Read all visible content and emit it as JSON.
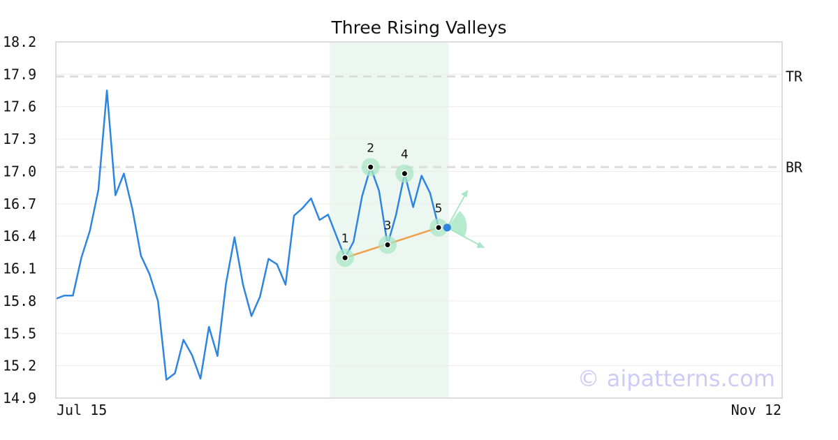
{
  "chart_data": {
    "type": "line",
    "title": "Three Rising Valleys",
    "ylim": [
      14.9,
      18.2
    ],
    "y_ticks": [
      "18.2",
      "17.9",
      "17.6",
      "17.3",
      "17.0",
      "16.7",
      "16.4",
      "16.1",
      "15.8",
      "15.5",
      "15.2",
      "14.9"
    ],
    "x_tick_labels": [
      "Jul 15",
      "Nov 12"
    ],
    "grid": true,
    "reference_lines": [
      {
        "label": "TR",
        "value": 17.88
      },
      {
        "label": "BR",
        "value": 17.04
      }
    ],
    "series": [
      {
        "color": "#2d85e0",
        "values": [
          15.82,
          15.85,
          15.85,
          16.2,
          16.45,
          16.83,
          17.75,
          16.78,
          16.98,
          16.65,
          16.22,
          16.05,
          15.8,
          15.07,
          15.13,
          15.44,
          15.3,
          15.08,
          15.56,
          15.29,
          15.96,
          16.39,
          15.95,
          15.66,
          15.84,
          16.19,
          16.14,
          15.95,
          16.59,
          16.66,
          16.75,
          16.55,
          16.6,
          16.4,
          16.2,
          16.35,
          16.77,
          17.04,
          16.82,
          16.32,
          16.6,
          16.98,
          16.67,
          16.96,
          16.8,
          16.48
        ]
      }
    ],
    "pattern": {
      "name": "Three Rising Valleys",
      "highlight_range": [
        32.2,
        46.2
      ],
      "points": [
        {
          "label": "1",
          "index": 34,
          "value": 16.2
        },
        {
          "label": "2",
          "index": 37,
          "value": 17.04
        },
        {
          "label": "3",
          "index": 39,
          "value": 16.32
        },
        {
          "label": "4",
          "index": 41,
          "value": 16.98
        },
        {
          "label": "5",
          "index": 45,
          "value": 16.48
        }
      ],
      "trendline": {
        "from_index": 34,
        "to_index": 45,
        "color": "#f0a048"
      },
      "last_point": {
        "index": 46,
        "value": 16.48,
        "color": "#2d85e0"
      },
      "highlight_color": "#edf7f2",
      "marker_color": "#a8e6c4"
    },
    "watermark": "© aipatterns.com"
  }
}
